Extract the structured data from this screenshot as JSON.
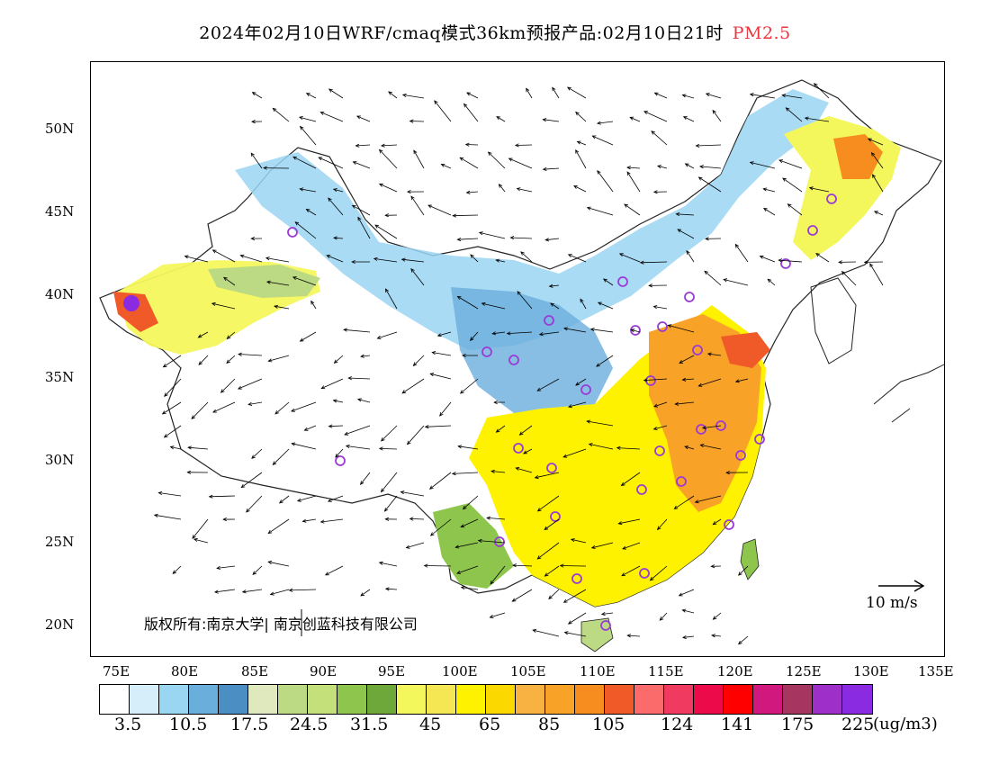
{
  "title": {
    "main": "2024年02月10日WRF/cmaq模式36km预报产品:02月10日21时",
    "species": "PM2.5"
  },
  "map": {
    "lat_labels": [
      "50N",
      "45N",
      "40N",
      "35N",
      "30N",
      "25N",
      "20N"
    ],
    "lon_labels": [
      "75E",
      "80E",
      "85E",
      "90E",
      "95E",
      "100E",
      "105E",
      "110E",
      "115E",
      "120E",
      "125E",
      "130E",
      "135E"
    ],
    "copyright": "版权所有:南京大学| 南京创蓝科技有限公司",
    "wind_scale_label": "10 m/s"
  },
  "legend": {
    "colors": [
      "#ffffff",
      "#d6eefa",
      "#9ad5f2",
      "#6aaedc",
      "#4a8ec4",
      "#dfe9bd",
      "#bcd983",
      "#c3e07a",
      "#8ec64d",
      "#6fa83a",
      "#f4f75c",
      "#f5e653",
      "#fff200",
      "#fbd800",
      "#f8b241",
      "#f8a328",
      "#f78c1f",
      "#f05a28",
      "#fc6b6b",
      "#f03a5f",
      "#ec0a4a",
      "#ff0000",
      "#d1187f",
      "#a6355f",
      "#9e2fc9",
      "#8a2be2"
    ],
    "labels": [
      "3.5",
      "10.5",
      "17.5",
      "24.5",
      "31.5",
      "45",
      "65",
      "85",
      "105",
      "124",
      "141",
      "175",
      "225"
    ],
    "unit": "(ug/m3)"
  }
}
